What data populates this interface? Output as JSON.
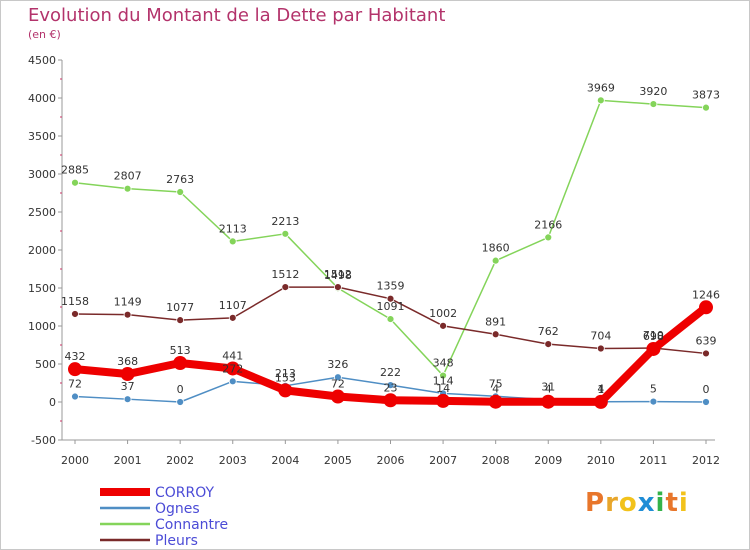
{
  "header": {
    "title": "Evolution du Montant de la Dette par Habitant",
    "subtitle": "(en €)"
  },
  "logo": {
    "text": "Proxiti"
  },
  "chart_data": {
    "type": "line",
    "title": "Evolution du Montant de la Dette par Habitant",
    "subtitle": "(en €)",
    "x": [
      "2000",
      "2001",
      "2002",
      "2003",
      "2004",
      "2005",
      "2006",
      "2007",
      "2008",
      "2009",
      "2010",
      "2011",
      "2012"
    ],
    "ylim": [
      -500,
      4500
    ],
    "yticks": [
      -500,
      0,
      500,
      1000,
      1500,
      2000,
      2500,
      3000,
      3500,
      4000,
      4500
    ],
    "grid": false,
    "legend": "bottom-left",
    "series": [
      {
        "name": "CORROY",
        "color": "#ee0000",
        "values": [
          432,
          368,
          513,
          441,
          153,
          72,
          23,
          14,
          4,
          4,
          1,
          698,
          1246
        ],
        "labels": [
          "432",
          "368",
          "513",
          "441",
          "153",
          "72",
          "23",
          "14",
          "4",
          "4",
          "1",
          "698",
          "1246"
        ]
      },
      {
        "name": "Ognes",
        "color": "#4f8ec4",
        "values": [
          72,
          37,
          0,
          272,
          213,
          326,
          222,
          114,
          75,
          31,
          4,
          5,
          0
        ],
        "labels": [
          "72",
          "37",
          "0",
          "272",
          "213",
          "326",
          "222",
          "114",
          "75",
          "31",
          "4",
          "5",
          "0"
        ]
      },
      {
        "name": "Connantre",
        "color": "#84d45a",
        "values": [
          2885,
          2807,
          2763,
          2113,
          2213,
          1498,
          1091,
          348,
          1860,
          2166,
          3969,
          3920,
          3873
        ],
        "labels": [
          "2885",
          "2807",
          "2763",
          "2113",
          "2213",
          "1498",
          "1091",
          "348",
          "1860",
          "2166",
          "3969",
          "3920",
          "3873"
        ]
      },
      {
        "name": "Pleurs",
        "color": "#7a2a2a",
        "values": [
          1158,
          1149,
          1077,
          1107,
          1512,
          1512,
          1359,
          1002,
          891,
          762,
          704,
          710,
          639
        ],
        "labels": [
          "1158",
          "1149",
          "1077",
          "1107",
          "1512",
          "1512",
          "1359",
          "1002",
          "891",
          "762",
          "704",
          "710",
          "639"
        ]
      }
    ]
  }
}
